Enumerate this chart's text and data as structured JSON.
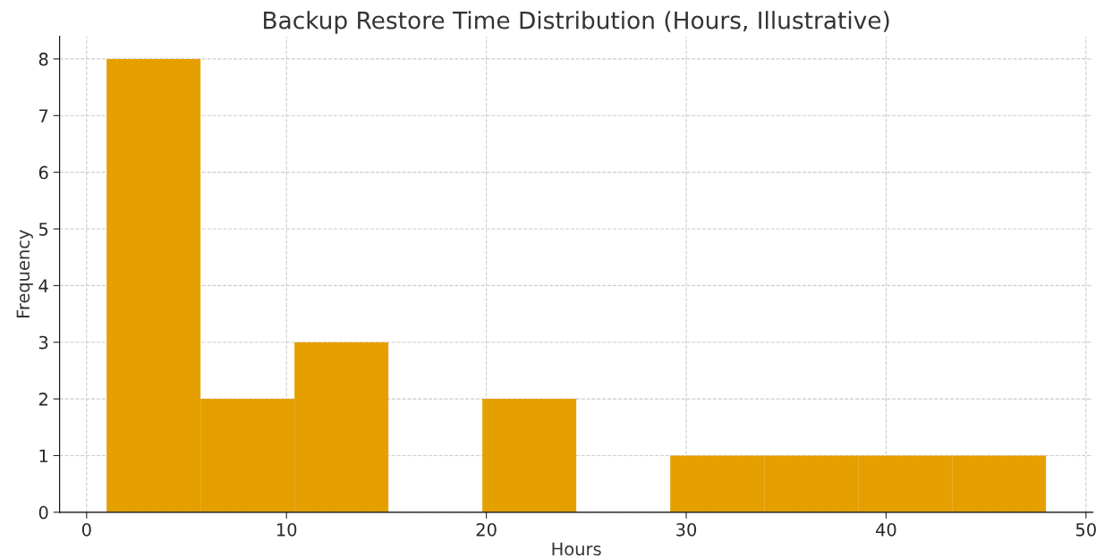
{
  "chart_data": {
    "type": "histogram",
    "title": "Backup Restore Time Distribution (Hours, Illustrative)",
    "xlabel": "Hours",
    "ylabel": "Frequency",
    "bins": [
      1,
      5.7,
      10.4,
      15.1,
      19.8,
      24.5,
      29.2,
      33.9,
      38.6,
      43.3,
      48
    ],
    "values": [
      8,
      2,
      3,
      0,
      2,
      0,
      1,
      1,
      1,
      1
    ],
    "color": "#e5a000",
    "xlim": [
      -1.35,
      50.35
    ],
    "ylim": [
      0,
      8.4
    ],
    "xticks": [
      0,
      10,
      20,
      30,
      40,
      50
    ],
    "yticks": [
      0,
      1,
      2,
      3,
      4,
      5,
      6,
      7,
      8
    ],
    "grid": true
  }
}
